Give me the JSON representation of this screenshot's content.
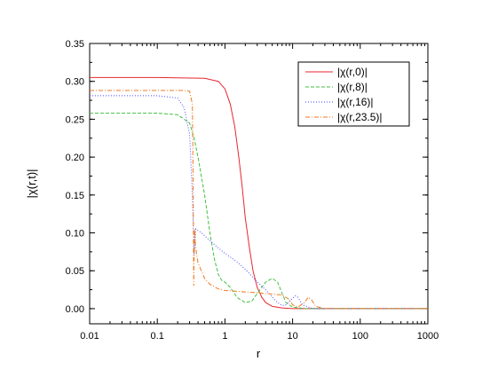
{
  "chart_data": {
    "type": "line",
    "title": "",
    "xlabel": "r",
    "ylabel": "|χ(r,t)|",
    "xscale": "log",
    "xlim": [
      0.01,
      1000
    ],
    "ylim": [
      -0.02,
      0.35
    ],
    "x_ticks": [
      0.01,
      0.1,
      1,
      10,
      100,
      1000
    ],
    "x_tick_labels": [
      "0.01",
      "0.1",
      "1",
      "10",
      "100",
      "1000"
    ],
    "y_ticks": [
      0.0,
      0.05,
      0.1,
      0.15,
      0.2,
      0.25,
      0.3,
      0.35
    ],
    "y_tick_labels": [
      "0.00",
      "0.05",
      "0.10",
      "0.15",
      "0.20",
      "0.25",
      "0.30",
      "0.35"
    ],
    "grid": false,
    "legend_position": "top-right",
    "series": [
      {
        "name": "|χ(r,0)|",
        "color": "#e8262e",
        "dash": "solid",
        "points": [
          [
            0.01,
            0.305
          ],
          [
            0.1,
            0.305
          ],
          [
            0.5,
            0.304
          ],
          [
            0.8,
            0.3
          ],
          [
            1.0,
            0.29
          ],
          [
            1.2,
            0.27
          ],
          [
            1.4,
            0.24
          ],
          [
            1.6,
            0.2
          ],
          [
            1.8,
            0.16
          ],
          [
            2.0,
            0.12
          ],
          [
            2.3,
            0.08
          ],
          [
            2.6,
            0.05
          ],
          [
            3.0,
            0.028
          ],
          [
            3.5,
            0.015
          ],
          [
            4.0,
            0.008
          ],
          [
            5.0,
            0.003
          ],
          [
            7.0,
            0.001
          ],
          [
            10,
            0.0
          ],
          [
            100,
            0.0
          ],
          [
            1000,
            0.0
          ]
        ]
      },
      {
        "name": "|χ(r,8)|",
        "color": "#40c040",
        "dash": "dashed",
        "points": [
          [
            0.01,
            0.258
          ],
          [
            0.1,
            0.258
          ],
          [
            0.2,
            0.256
          ],
          [
            0.3,
            0.245
          ],
          [
            0.35,
            0.225
          ],
          [
            0.4,
            0.2
          ],
          [
            0.5,
            0.15
          ],
          [
            0.6,
            0.1
          ],
          [
            0.7,
            0.065
          ],
          [
            0.8,
            0.045
          ],
          [
            0.9,
            0.037
          ],
          [
            1.0,
            0.035
          ],
          [
            1.2,
            0.028
          ],
          [
            1.5,
            0.015
          ],
          [
            2.0,
            0.008
          ],
          [
            2.5,
            0.01
          ],
          [
            3.0,
            0.02
          ],
          [
            4.0,
            0.035
          ],
          [
            5.0,
            0.04
          ],
          [
            6.0,
            0.035
          ],
          [
            7.0,
            0.02
          ],
          [
            8.0,
            0.008
          ],
          [
            10,
            0.002
          ],
          [
            15,
            0.0
          ],
          [
            1000,
            0.0
          ]
        ]
      },
      {
        "name": "|χ(r,16)|",
        "color": "#4a4aff",
        "dash": "dotted",
        "points": [
          [
            0.01,
            0.281
          ],
          [
            0.1,
            0.281
          ],
          [
            0.2,
            0.278
          ],
          [
            0.25,
            0.265
          ],
          [
            0.3,
            0.23
          ],
          [
            0.33,
            0.15
          ],
          [
            0.35,
            0.07
          ],
          [
            0.37,
            0.105
          ],
          [
            0.45,
            0.1
          ],
          [
            0.6,
            0.09
          ],
          [
            0.8,
            0.08
          ],
          [
            1.0,
            0.073
          ],
          [
            1.5,
            0.062
          ],
          [
            2.0,
            0.052
          ],
          [
            3.0,
            0.035
          ],
          [
            4.0,
            0.025
          ],
          [
            5.0,
            0.015
          ],
          [
            6.0,
            0.008
          ],
          [
            7.0,
            0.004
          ],
          [
            8.0,
            0.005
          ],
          [
            9.0,
            0.01
          ],
          [
            11,
            0.017
          ],
          [
            12,
            0.015
          ],
          [
            14,
            0.005
          ],
          [
            20,
            0.0
          ],
          [
            1000,
            0.0
          ]
        ]
      },
      {
        "name": "|χ(r,23.5)|",
        "color": "#f07820",
        "dash": "dashdot",
        "points": [
          [
            0.01,
            0.288
          ],
          [
            0.1,
            0.288
          ],
          [
            0.25,
            0.288
          ],
          [
            0.3,
            0.287
          ],
          [
            0.33,
            0.27
          ],
          [
            0.34,
            0.15
          ],
          [
            0.345,
            0.03
          ],
          [
            0.355,
            0.105
          ],
          [
            0.37,
            0.08
          ],
          [
            0.4,
            0.06
          ],
          [
            0.5,
            0.04
          ],
          [
            0.6,
            0.032
          ],
          [
            0.8,
            0.026
          ],
          [
            1.0,
            0.024
          ],
          [
            2.0,
            0.022
          ],
          [
            4.0,
            0.02
          ],
          [
            7.0,
            0.018
          ],
          [
            9.0,
            0.012
          ],
          [
            10,
            0.005
          ],
          [
            12,
            0.002
          ],
          [
            15,
            0.008
          ],
          [
            17,
            0.015
          ],
          [
            19,
            0.012
          ],
          [
            22,
            0.003
          ],
          [
            30,
            0.0
          ],
          [
            1000,
            0.0
          ]
        ]
      }
    ]
  }
}
